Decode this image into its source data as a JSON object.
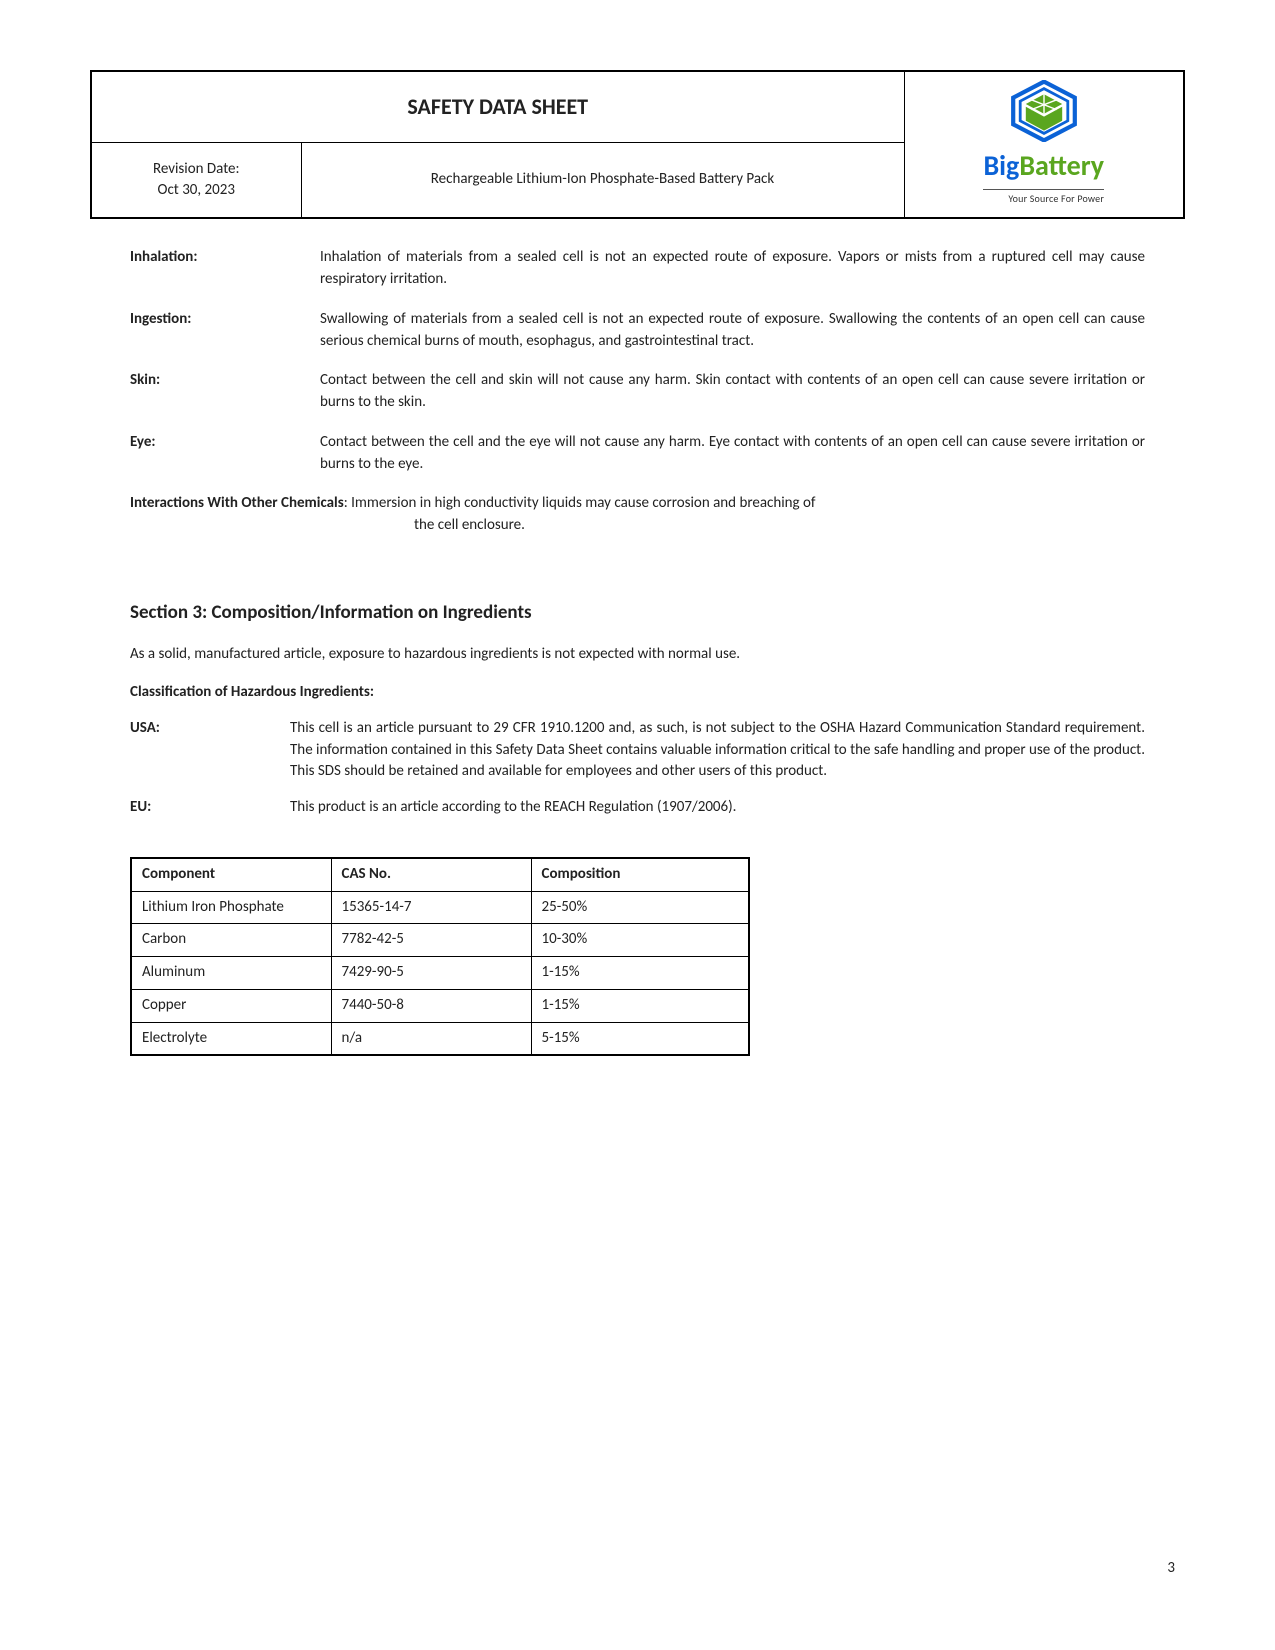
{
  "header": {
    "title": "SAFETY DATA SHEET",
    "revision_label": "Revision Date:",
    "revision_date": "Oct 30, 2023",
    "subtitle": "Rechargeable Lithium-Ion Phosphate-Based Battery Pack",
    "logo": {
      "brand_left": "Big",
      "brand_right": "Battery",
      "tagline": "Your Source For Power",
      "hex_stroke": "#0b62d6",
      "hex_fill": "#5aa61f"
    }
  },
  "hazards": [
    {
      "label": "Inhalation:",
      "text": "Inhalation of materials from a sealed cell is not an expected route of exposure. Vapors or mists from a ruptured cell may cause respiratory irritation."
    },
    {
      "label": "Ingestion:",
      "text": "Swallowing of materials from a sealed cell is not an expected route of exposure. Swallowing the contents of an open cell can cause serious chemical burns of mouth, esophagus, and gastrointestinal tract."
    },
    {
      "label": "Skin:",
      "text": "Contact between the cell and skin will not cause any harm. Skin contact with contents of an open cell can cause severe irritation or burns to the skin."
    },
    {
      "label": "Eye:",
      "text": "Contact between the cell and the eye will not cause any harm. Eye contact with contents of an open cell can cause severe irritation or burns to the eye."
    }
  ],
  "interactions": {
    "lead": "Interactions With Other Chemicals",
    "text_first": ": Immersion in high conductivity liquids may cause corrosion and breaching of",
    "text_cont": "the cell enclosure."
  },
  "section3": {
    "heading": "Section 3: Composition/Information on Ingredients",
    "intro": "As a solid, manufactured article, exposure to hazardous ingredients is not expected with normal use.",
    "classif": "Classification of Hazardous Ingredients:",
    "regions": [
      {
        "label": "USA:",
        "text": "This cell is an article pursuant to 29 CFR 1910.1200 and, as such, is not subject to the OSHA Hazard Communication Standard requirement. The information contained in this Safety Data Sheet contains valuable information critical to the safe handling and proper use of the product. This SDS should be retained and available for employees and other users of this product."
      },
      {
        "label": "EU:",
        "text": "This product is an article according to the REACH Regulation (1907/2006)."
      }
    ]
  },
  "composition_table": {
    "columns": [
      "Component",
      "CAS No.",
      "Composition"
    ],
    "rows": [
      [
        "Lithium Iron Phosphate",
        "15365-14-7",
        "25-50%"
      ],
      [
        "Carbon",
        "7782-42-5",
        "10-30%"
      ],
      [
        "Aluminum",
        "7429-90-5",
        "1-15%"
      ],
      [
        "Copper",
        "7440-50-8",
        "1-15%"
      ],
      [
        "Electrolyte",
        "n/a",
        "5-15%"
      ]
    ]
  },
  "page_number": "3"
}
